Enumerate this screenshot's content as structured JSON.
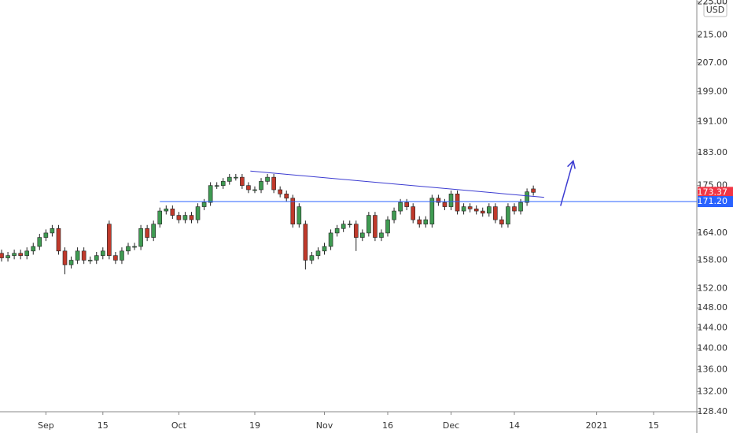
{
  "chart_data": {
    "type": "candlestick",
    "currency": "USD",
    "log": true,
    "up_color": "#3f9b52",
    "down_color": "#c0392b",
    "ylim": [
      128.4,
      225.6
    ],
    "yticks": [
      {
        "value": 225,
        "label": "225.00"
      },
      {
        "value": 215,
        "label": "215.00"
      },
      {
        "value": 207,
        "label": "207.00"
      },
      {
        "value": 199,
        "label": "199.00"
      },
      {
        "value": 191,
        "label": "191.00"
      },
      {
        "value": 183,
        "label": "183.00"
      },
      {
        "value": 175,
        "label": "175.00"
      },
      {
        "value": 164,
        "label": "164.00"
      },
      {
        "value": 158,
        "label": "158.00"
      },
      {
        "value": 152,
        "label": "152.00"
      },
      {
        "value": 148,
        "label": "148.00"
      },
      {
        "value": 144,
        "label": "144.00"
      },
      {
        "value": 140,
        "label": "140.00"
      },
      {
        "value": 136,
        "label": "136.00"
      },
      {
        "value": 132,
        "label": "132.00"
      },
      {
        "value": 128.4,
        "label": "128.40"
      }
    ],
    "xlim": [
      -0.25,
      109.7
    ],
    "xticks": [
      {
        "value": 7,
        "label": "Sep"
      },
      {
        "value": 16,
        "label": "15"
      },
      {
        "value": 28,
        "label": "Oct"
      },
      {
        "value": 40,
        "label": "19"
      },
      {
        "value": 51,
        "label": "Nov"
      },
      {
        "value": 61,
        "label": "16"
      },
      {
        "value": 71,
        "label": "Dec"
      },
      {
        "value": 81,
        "label": "14"
      },
      {
        "value": 94,
        "label": "2021"
      },
      {
        "value": 103,
        "label": "15"
      }
    ],
    "open": [
      159.5,
      158.5,
      159,
      159.5,
      159,
      160,
      161,
      163,
      164,
      165,
      160,
      157,
      158,
      160,
      158,
      158,
      159,
      166,
      159,
      158,
      160,
      161,
      161,
      165,
      163,
      166,
      169,
      169.5,
      168,
      167,
      168,
      167,
      170,
      171,
      175,
      175,
      176,
      177,
      177,
      175,
      174,
      174,
      176,
      177,
      174,
      173,
      172,
      166,
      166,
      158,
      159,
      160,
      161,
      164,
      165,
      166,
      166,
      163,
      164,
      168,
      163,
      164,
      167,
      169,
      171,
      170,
      167,
      166,
      166,
      172,
      171,
      170,
      173,
      169,
      170,
      169.5,
      169,
      168.5,
      170,
      167,
      166,
      170,
      169,
      171,
      174.2
    ],
    "high": [
      160.3,
      159.8,
      160.3,
      160.3,
      160.8,
      161.8,
      163.8,
      164.8,
      165.8,
      165.8,
      160.8,
      158.8,
      160.8,
      160.8,
      158.8,
      159.8,
      160.8,
      166.8,
      159.8,
      160.8,
      161.8,
      161.8,
      165.8,
      165.8,
      166.8,
      169.8,
      170.3,
      170.3,
      168.8,
      168.8,
      168.8,
      170.8,
      171.8,
      175.8,
      175.8,
      176.8,
      177.8,
      177.8,
      177.8,
      175.8,
      174.8,
      176.8,
      177.8,
      177.8,
      174.8,
      173.8,
      172.8,
      170.8,
      166.8,
      159.8,
      160.8,
      161.8,
      164.8,
      165.8,
      166.8,
      166.8,
      166.8,
      164.8,
      168.8,
      168.8,
      164.8,
      167.8,
      169.8,
      171.8,
      171.8,
      170.8,
      167.8,
      167.8,
      172.8,
      172.8,
      171.8,
      173.8,
      173.8,
      170.8,
      170.8,
      170.3,
      169.8,
      170.8,
      170.8,
      167.8,
      170.8,
      170.8,
      171.8,
      174.3,
      175.0
    ],
    "low": [
      157.7,
      157.7,
      158.2,
      158.2,
      158.2,
      159.2,
      160.2,
      162.2,
      163.2,
      159.2,
      155,
      156.2,
      157.2,
      157.2,
      157.2,
      157.2,
      158.2,
      158.2,
      157.2,
      157.2,
      159.2,
      160.2,
      160.2,
      162.2,
      162.2,
      165.2,
      168.2,
      167.2,
      166.2,
      166.2,
      166.2,
      166.2,
      169.2,
      170.2,
      174.2,
      174.2,
      175.2,
      176.2,
      174.2,
      173.2,
      173.2,
      173.2,
      175.2,
      173.2,
      172.2,
      171.2,
      165.2,
      165.2,
      156,
      157.2,
      158.2,
      159.2,
      160.2,
      163.2,
      164.2,
      165.2,
      160,
      162.2,
      163.2,
      162.2,
      162.2,
      163.2,
      166.2,
      168.2,
      169.2,
      166.2,
      165.2,
      165.2,
      165.2,
      170.2,
      169.2,
      169.2,
      168.2,
      168.2,
      168.7,
      168.2,
      167.7,
      167.7,
      166.2,
      165.2,
      165.2,
      168.2,
      168.2,
      170.2,
      172.6
    ],
    "close": [
      158.5,
      159,
      159.5,
      159,
      160,
      161,
      163,
      164,
      165,
      160,
      157,
      158,
      160,
      158,
      158,
      159,
      160,
      159,
      158,
      160,
      161,
      161,
      165,
      163,
      166,
      169,
      169.5,
      168,
      167,
      168,
      167,
      170,
      171,
      175,
      175,
      176,
      177,
      177,
      175,
      174,
      174,
      176,
      177,
      174,
      173,
      172,
      166,
      170,
      158,
      159,
      160,
      161,
      164,
      165,
      166,
      166,
      163,
      164,
      168,
      163,
      164,
      167,
      169,
      171,
      170,
      167,
      166,
      167,
      172,
      171,
      170,
      173,
      169,
      170,
      169.5,
      169,
      168.5,
      170,
      167,
      166,
      170,
      169,
      171,
      173.5,
      173.37
    ],
    "last_price": {
      "value": 173.37,
      "label": "173.37",
      "color": "#f23645"
    },
    "level": {
      "value": 171.2,
      "label": "171.20",
      "start": 25,
      "color": "#2962ff"
    },
    "trendline": {
      "x": [
        39.3,
        85.7
      ],
      "y": [
        178.5,
        172.2
      ],
      "color": "#3b3bd1"
    },
    "arrow": {
      "x": [
        88.3,
        90.3
      ],
      "y": [
        170.2,
        181
      ],
      "color": "#3b3bd1"
    }
  }
}
